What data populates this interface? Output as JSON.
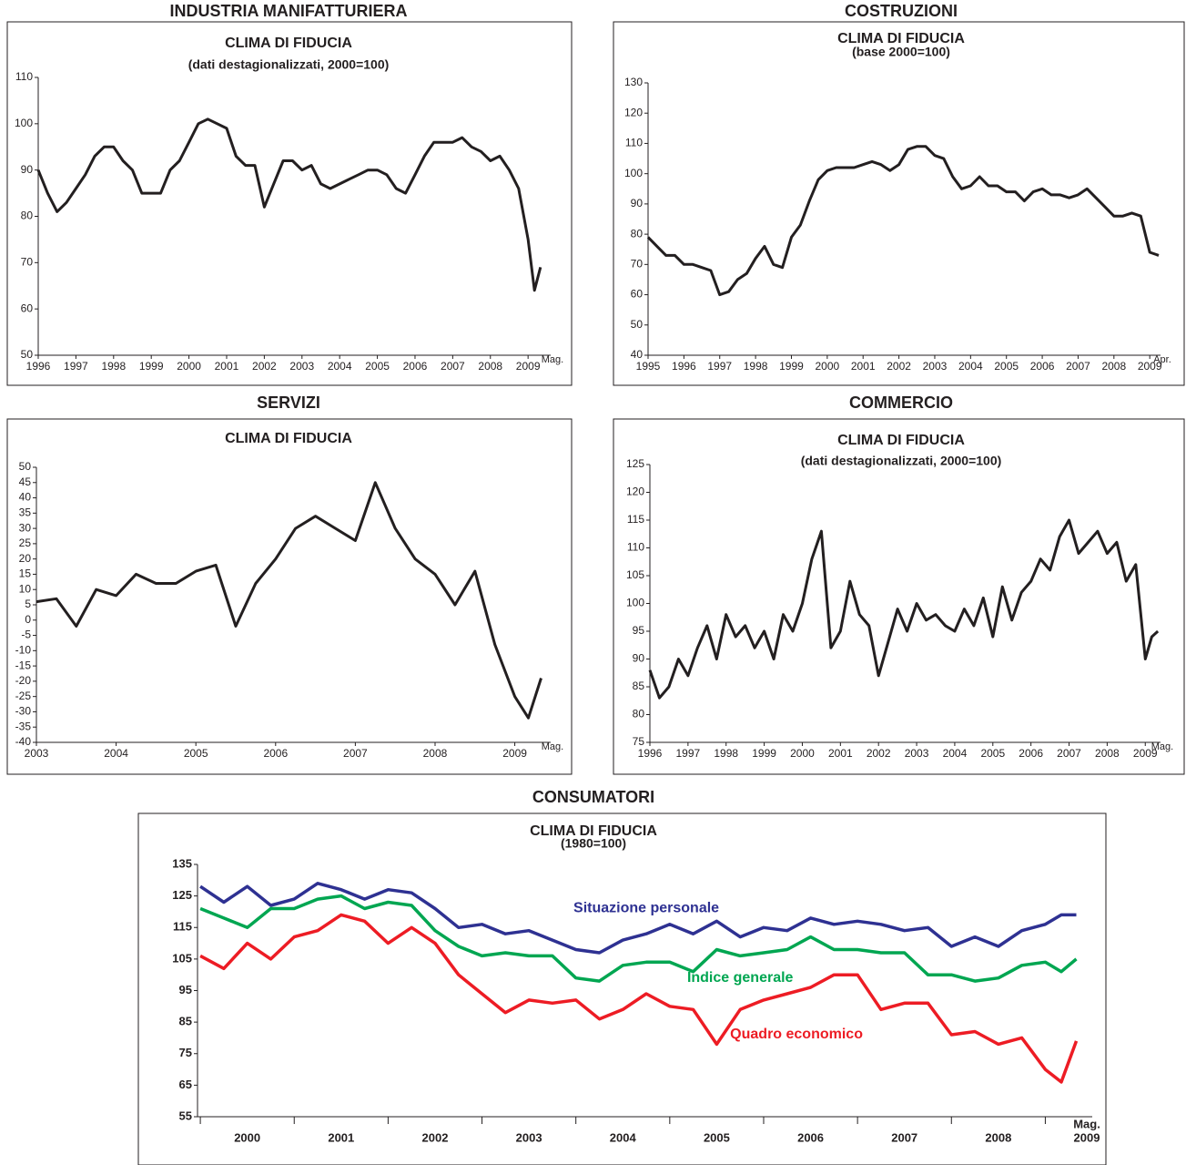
{
  "chart_data": [
    {
      "type": "line",
      "heading": "INDUSTRIA MANIFATTURIERA",
      "title": "CLIMA DI FIDUCIA",
      "subtitle": "(dati destagionalizzati, 2000=100)",
      "color": "#231f20",
      "x": [
        1996,
        1996.25,
        1996.5,
        1996.75,
        1997,
        1997.25,
        1997.5,
        1997.75,
        1998,
        1998.25,
        1998.5,
        1998.75,
        1999,
        1999.25,
        1999.5,
        1999.75,
        2000,
        2000.25,
        2000.5,
        2000.75,
        2001,
        2001.25,
        2001.5,
        2001.75,
        2002,
        2002.25,
        2002.5,
        2002.75,
        2003,
        2003.25,
        2003.5,
        2003.75,
        2004,
        2004.25,
        2004.5,
        2004.75,
        2005,
        2005.25,
        2005.5,
        2005.75,
        2006,
        2006.25,
        2006.5,
        2006.75,
        2007,
        2007.25,
        2007.5,
        2007.75,
        2008,
        2008.25,
        2008.5,
        2008.75,
        2009,
        2009.17,
        2009.33
      ],
      "values": [
        90,
        85,
        81,
        83,
        86,
        89,
        93,
        95,
        95,
        92,
        90,
        85,
        85,
        85,
        90,
        92,
        96,
        100,
        101,
        100,
        99,
        93,
        91,
        91,
        82,
        87,
        92,
        92,
        90,
        91,
        87,
        86,
        87,
        88,
        89,
        90,
        90,
        89,
        86,
        85,
        89,
        93,
        96,
        96,
        96,
        97,
        95,
        94,
        92,
        93,
        90,
        86,
        75,
        64,
        69
      ],
      "xlim": [
        1996,
        2009.6
      ],
      "xticks": [
        1996,
        1997,
        1998,
        1999,
        2000,
        2001,
        2002,
        2003,
        2004,
        2005,
        2006,
        2007,
        2008,
        2009
      ],
      "x_end_label": "Mag.",
      "ylim": [
        50,
        110
      ],
      "yticks": [
        50,
        60,
        70,
        80,
        90,
        100,
        110
      ]
    },
    {
      "type": "line",
      "heading": "COSTRUZIONI",
      "title": "CLIMA DI FIDUCIA",
      "subtitle": "(base 2000=100)",
      "color": "#231f20",
      "x": [
        1995,
        1995.25,
        1995.5,
        1995.75,
        1996,
        1996.25,
        1996.5,
        1996.75,
        1997,
        1997.25,
        1997.5,
        1997.75,
        1998,
        1998.25,
        1998.5,
        1998.75,
        1999,
        1999.25,
        1999.5,
        1999.75,
        2000,
        2000.25,
        2000.5,
        2000.75,
        2001,
        2001.25,
        2001.5,
        2001.75,
        2002,
        2002.25,
        2002.5,
        2002.75,
        2003,
        2003.25,
        2003.5,
        2003.75,
        2004,
        2004.25,
        2004.5,
        2004.75,
        2005,
        2005.25,
        2005.5,
        2005.75,
        2006,
        2006.25,
        2006.5,
        2006.75,
        2007,
        2007.25,
        2007.5,
        2007.75,
        2008,
        2008.25,
        2008.5,
        2008.75,
        2009,
        2009.25
      ],
      "values": [
        79,
        76,
        73,
        73,
        70,
        70,
        69,
        68,
        60,
        61,
        65,
        67,
        72,
        76,
        70,
        69,
        79,
        83,
        91,
        98,
        101,
        102,
        102,
        102,
        103,
        104,
        103,
        101,
        103,
        108,
        109,
        109,
        106,
        105,
        99,
        95,
        96,
        99,
        96,
        96,
        94,
        94,
        91,
        94,
        95,
        93,
        93,
        92,
        93,
        95,
        92,
        89,
        86,
        86,
        87,
        86,
        74,
        73
      ],
      "xlim": [
        1995,
        2009.3
      ],
      "xticks": [
        1995,
        1996,
        1997,
        1998,
        1999,
        2000,
        2001,
        2002,
        2003,
        2004,
        2005,
        2006,
        2007,
        2008,
        2009
      ],
      "x_end_label": "Apr.",
      "ylim": [
        40,
        130
      ],
      "yticks": [
        40,
        50,
        60,
        70,
        80,
        90,
        100,
        110,
        120,
        130
      ]
    },
    {
      "type": "line",
      "heading": "SERVIZI",
      "title": "CLIMA DI FIDUCIA",
      "color": "#231f20",
      "x": [
        2003,
        2003.25,
        2003.5,
        2003.75,
        2004,
        2004.25,
        2004.5,
        2004.75,
        2005,
        2005.25,
        2005.5,
        2005.75,
        2006,
        2006.25,
        2006.5,
        2006.75,
        2007,
        2007.25,
        2007.5,
        2007.75,
        2008,
        2008.25,
        2008.5,
        2008.75,
        2009,
        2009.17,
        2009.33
      ],
      "values": [
        6,
        7,
        -2,
        10,
        8,
        15,
        12,
        12,
        16,
        18,
        -2,
        12,
        20,
        30,
        34,
        30,
        26,
        45,
        30,
        20,
        15,
        5,
        16,
        -8,
        -25,
        -32,
        -19
      ],
      "xlim": [
        2003,
        2009.45
      ],
      "xticks": [
        2003,
        2004,
        2005,
        2006,
        2007,
        2008,
        2009
      ],
      "x_end_label": "Mag.",
      "ylim": [
        -40,
        50
      ],
      "yticks": [
        -40,
        -35,
        -30,
        -25,
        -20,
        -15,
        -10,
        -5,
        0,
        5,
        10,
        15,
        20,
        25,
        30,
        35,
        40,
        45,
        50
      ]
    },
    {
      "type": "line",
      "heading": "COMMERCIO",
      "title": "CLIMA DI FIDUCIA",
      "subtitle": "(dati destagionalizzati, 2000=100)",
      "color": "#231f20",
      "x": [
        1996,
        1996.25,
        1996.5,
        1996.75,
        1997,
        1997.25,
        1997.5,
        1997.75,
        1998,
        1998.25,
        1998.5,
        1998.75,
        1999,
        1999.25,
        1999.5,
        1999.75,
        2000,
        2000.25,
        2000.5,
        2000.75,
        2001,
        2001.25,
        2001.5,
        2001.75,
        2002,
        2002.25,
        2002.5,
        2002.75,
        2003,
        2003.25,
        2003.5,
        2003.75,
        2004,
        2004.25,
        2004.5,
        2004.75,
        2005,
        2005.25,
        2005.5,
        2005.75,
        2006,
        2006.25,
        2006.5,
        2006.75,
        2007,
        2007.25,
        2007.5,
        2007.75,
        2008,
        2008.25,
        2008.5,
        2008.75,
        2009,
        2009.17,
        2009.33
      ],
      "values": [
        88,
        83,
        85,
        90,
        87,
        92,
        96,
        90,
        98,
        94,
        96,
        92,
        95,
        90,
        98,
        95,
        100,
        108,
        113,
        92,
        95,
        104,
        98,
        96,
        87,
        93,
        99,
        95,
        100,
        97,
        98,
        96,
        95,
        99,
        96,
        101,
        94,
        103,
        97,
        102,
        104,
        108,
        106,
        112,
        115,
        109,
        111,
        113,
        109,
        111,
        104,
        107,
        90,
        94,
        95
      ],
      "xlim": [
        1996,
        2009.4
      ],
      "xticks": [
        1996,
        1997,
        1998,
        1999,
        2000,
        2001,
        2002,
        2003,
        2004,
        2005,
        2006,
        2007,
        2008,
        2009
      ],
      "x_end_label": "Mag.",
      "ylim": [
        75,
        125
      ],
      "yticks": [
        75,
        80,
        85,
        90,
        95,
        100,
        105,
        110,
        115,
        120,
        125
      ]
    },
    {
      "type": "line",
      "heading": "CONSUMATORI",
      "title": "CLIMA DI FIDUCIA",
      "subtitle": "(1980=100)",
      "x": [
        2000,
        2000.25,
        2000.5,
        2000.75,
        2001,
        2001.25,
        2001.5,
        2001.75,
        2002,
        2002.25,
        2002.5,
        2002.75,
        2003,
        2003.25,
        2003.5,
        2003.75,
        2004,
        2004.25,
        2004.5,
        2004.75,
        2005,
        2005.25,
        2005.5,
        2005.75,
        2006,
        2006.25,
        2006.5,
        2006.75,
        2007,
        2007.25,
        2007.5,
        2007.75,
        2008,
        2008.25,
        2008.5,
        2008.75,
        2009,
        2009.17,
        2009.33
      ],
      "series": [
        {
          "name": "Situazione personale",
          "color": "#2e3192",
          "values": [
            128,
            123,
            128,
            122,
            124,
            129,
            127,
            124,
            127,
            126,
            121,
            115,
            116,
            113,
            114,
            111,
            108,
            107,
            111,
            113,
            116,
            113,
            117,
            112,
            115,
            114,
            118,
            116,
            117,
            116,
            114,
            115,
            109,
            112,
            109,
            114,
            116,
            119,
            119
          ]
        },
        {
          "name": "Indice generale",
          "color": "#00a651",
          "values": [
            121,
            118,
            115,
            121,
            121,
            124,
            125,
            121,
            123,
            122,
            114,
            109,
            106,
            107,
            106,
            106,
            99,
            98,
            103,
            104,
            104,
            101,
            108,
            106,
            107,
            108,
            112,
            108,
            108,
            107,
            107,
            100,
            100,
            98,
            99,
            103,
            104,
            101,
            105
          ]
        },
        {
          "name": "Quadro economico",
          "color": "#ed1c24",
          "values": [
            106,
            102,
            110,
            105,
            112,
            114,
            119,
            117,
            110,
            115,
            110,
            100,
            94,
            88,
            92,
            91,
            92,
            86,
            89,
            94,
            90,
            89,
            78,
            89,
            92,
            94,
            96,
            100,
            100,
            89,
            91,
            91,
            81,
            82,
            78,
            80,
            70,
            66,
            79
          ]
        }
      ],
      "xlim": [
        1999.97,
        2009.5
      ],
      "xticks": [
        2000,
        2001,
        2002,
        2003,
        2004,
        2005,
        2006,
        2007,
        2008,
        2009
      ],
      "x_end_label": "Mag.",
      "ylim": [
        55,
        135
      ],
      "yticks": [
        55,
        65,
        75,
        85,
        95,
        105,
        115,
        125,
        135
      ]
    }
  ]
}
